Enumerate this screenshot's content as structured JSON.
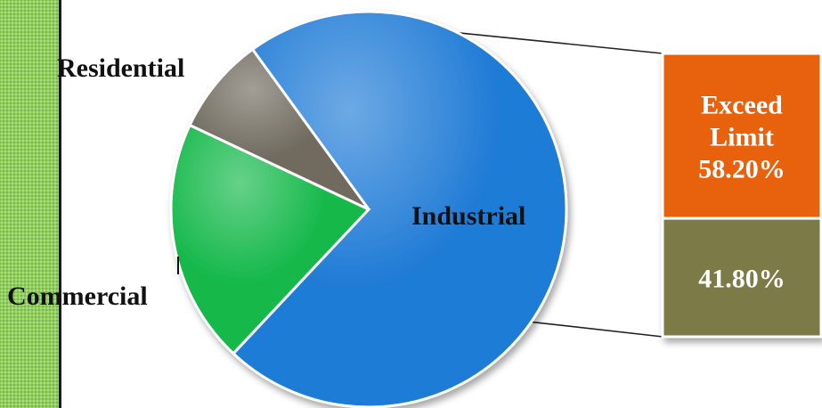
{
  "chart_data": {
    "type": "pie",
    "title": "",
    "pie": {
      "slices": [
        {
          "label": "Industrial",
          "percent": 72,
          "color": "#1f7bd6"
        },
        {
          "label": "Commercial",
          "percent": 20,
          "color": "#14b84a"
        },
        {
          "label": "Residential",
          "percent": 8,
          "color": "#6f6a5e"
        }
      ]
    },
    "breakdown": {
      "parent": "Industrial",
      "segments": [
        {
          "label": "Exceed Limit",
          "value_text": "58.20%",
          "percent": 58.2,
          "color": "#e8620e"
        },
        {
          "label": "",
          "value_text": "41.80%",
          "percent": 41.8,
          "color": "#7c7a46"
        }
      ]
    }
  }
}
